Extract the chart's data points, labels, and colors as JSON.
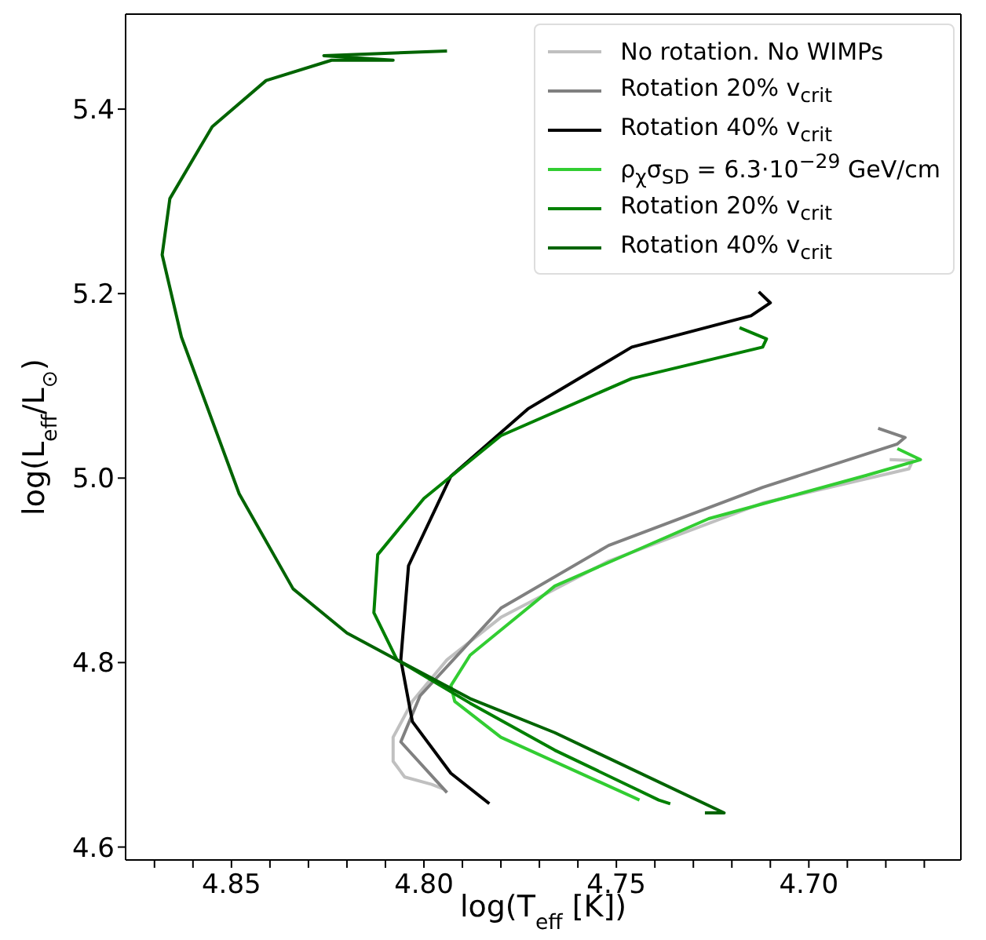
{
  "chart_data": {
    "type": "line",
    "xlabel": "log(T$_{eff}$ [K])",
    "ylabel": "log(L$_{eff}$/L$_{⊙}$)",
    "xlim": [
      4.8775,
      4.6605
    ],
    "ylim": [
      4.586,
      5.503
    ],
    "xticks": [
      {
        "value": 4.87,
        "label": null
      },
      {
        "value": 4.86,
        "label": null
      },
      4.85,
      {
        "value": 4.84,
        "label": null
      },
      {
        "value": 4.83,
        "label": null
      },
      {
        "value": 4.82,
        "label": null
      },
      {
        "value": 4.81,
        "label": null
      },
      {
        "value": 4.8,
        "label": "4.80"
      },
      {
        "value": 4.79,
        "label": null
      },
      {
        "value": 4.78,
        "label": null
      },
      {
        "value": 4.77,
        "label": null
      },
      {
        "value": 4.76,
        "label": null
      },
      4.75,
      {
        "value": 4.74,
        "label": null
      },
      {
        "value": 4.73,
        "label": null
      },
      {
        "value": 4.72,
        "label": null
      },
      {
        "value": 4.71,
        "label": null
      },
      {
        "value": 4.7,
        "label": "4.70"
      },
      {
        "value": 4.69,
        "label": null
      },
      {
        "value": 4.68,
        "label": null
      },
      {
        "value": 4.67,
        "label": null
      }
    ],
    "yticks": [
      4.6,
      4.8,
      {
        "value": 5,
        "label": "5.0"
      },
      5.2,
      5.4
    ],
    "legend": "top right",
    "line_style": "solid",
    "series": [
      {
        "name": "No rotation. No WIMPs",
        "color": "#c0c0c0",
        "x": [
          4.795,
          4.798,
          4.805,
          4.808,
          4.808,
          4.803,
          4.794,
          4.78,
          4.752,
          4.712,
          4.674,
          4.673,
          4.679
        ],
        "values": [
          4.663,
          4.668,
          4.676,
          4.693,
          4.719,
          4.758,
          4.803,
          4.849,
          4.91,
          4.973,
          5.01,
          5.019,
          5.02
        ]
      },
      {
        "name": "Rotation 20% v$_{crit}$",
        "color": "#808080",
        "x": [
          4.794,
          4.806,
          4.801,
          4.78,
          4.752,
          4.712,
          4.677,
          4.675,
          4.682
        ],
        "values": [
          4.659,
          4.714,
          4.764,
          4.859,
          4.927,
          4.99,
          5.037,
          5.044,
          5.054
        ]
      },
      {
        "name": "Rotation 40% v$_{crit}$",
        "color": "#000000",
        "x": [
          4.783,
          4.793,
          4.803,
          4.806,
          4.804,
          4.793,
          4.773,
          4.746,
          4.715,
          4.71,
          4.713
        ],
        "values": [
          4.647,
          4.68,
          4.736,
          4.803,
          4.905,
          5.002,
          5.075,
          5.142,
          5.176,
          5.19,
          5.202
        ]
      },
      {
        "name": "ρ$_{χ}$σ$_{SD}$ = 6.3·10$^{−29}$ GeV/cm",
        "color": "#32cd32",
        "x": [
          4.744,
          4.78,
          4.792,
          4.793,
          4.788,
          4.766,
          4.726,
          4.685,
          4.671,
          4.677
        ],
        "values": [
          4.651,
          4.719,
          4.758,
          4.775,
          4.808,
          4.883,
          4.956,
          5.003,
          5.02,
          5.032
        ]
      },
      {
        "name": "Rotation 20% v$_{crit}$",
        "color": "#008000",
        "x": [
          4.736,
          4.739,
          4.766,
          4.788,
          4.807,
          4.813,
          4.812,
          4.8,
          4.78,
          4.746,
          4.712,
          4.711,
          4.718
        ],
        "values": [
          4.647,
          4.651,
          4.705,
          4.756,
          4.803,
          4.854,
          4.917,
          4.978,
          5.046,
          5.108,
          5.142,
          5.151,
          5.163
        ]
      },
      {
        "name": "Rotation 40% v$_{crit}$",
        "color": "#006400",
        "x": [
          4.727,
          4.722,
          4.766,
          4.788,
          4.807,
          4.82,
          4.834,
          4.848,
          4.863,
          4.868,
          4.866,
          4.855,
          4.841,
          4.824,
          4.808,
          4.826,
          4.794
        ],
        "values": [
          4.637,
          4.637,
          4.724,
          4.761,
          4.803,
          4.832,
          4.88,
          4.983,
          5.153,
          5.242,
          5.303,
          5.381,
          5.431,
          5.453,
          5.453,
          5.458,
          5.463
        ]
      }
    ]
  }
}
